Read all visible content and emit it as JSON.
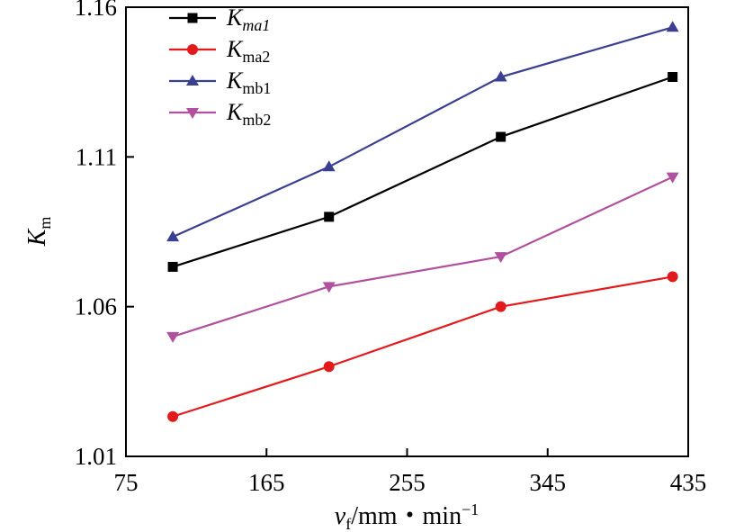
{
  "chart_data": {
    "type": "line",
    "x": [
      105,
      205,
      315,
      425
    ],
    "xlim": [
      75,
      435
    ],
    "ylim": [
      1.01,
      1.16
    ],
    "xticks": [
      "75",
      "165",
      "255",
      "345",
      "435"
    ],
    "yticks": [
      "1.01",
      "1.06",
      "1.11",
      "1.16"
    ],
    "xlabel": {
      "main": "v",
      "sub": "f",
      "rest": "/mm・min",
      "sup": "−1"
    },
    "ylabel": {
      "main": "K",
      "sub": "m"
    },
    "grid": false,
    "legend_position": "top-left",
    "series": [
      {
        "name_main": "K",
        "name_sub": "ma1",
        "italic_sub": true,
        "color": "#000000",
        "marker": "square",
        "values": [
          1.0733,
          1.09,
          1.1167,
          1.1367
        ]
      },
      {
        "name_main": "K",
        "name_sub": "ma2",
        "italic_sub": false,
        "color": "#e31a1c",
        "marker": "circle",
        "values": [
          1.0233,
          1.04,
          1.06,
          1.07
        ]
      },
      {
        "name_main": "K",
        "name_sub": "mb1",
        "italic_sub": false,
        "color": "#3a3f8f",
        "marker": "triangle-up",
        "values": [
          1.0833,
          1.1067,
          1.1367,
          1.1533
        ]
      },
      {
        "name_main": "K",
        "name_sub": "mb2",
        "italic_sub": false,
        "color": "#b0509f",
        "marker": "triangle-down",
        "values": [
          1.05,
          1.0667,
          1.0767,
          1.1033
        ]
      }
    ]
  }
}
